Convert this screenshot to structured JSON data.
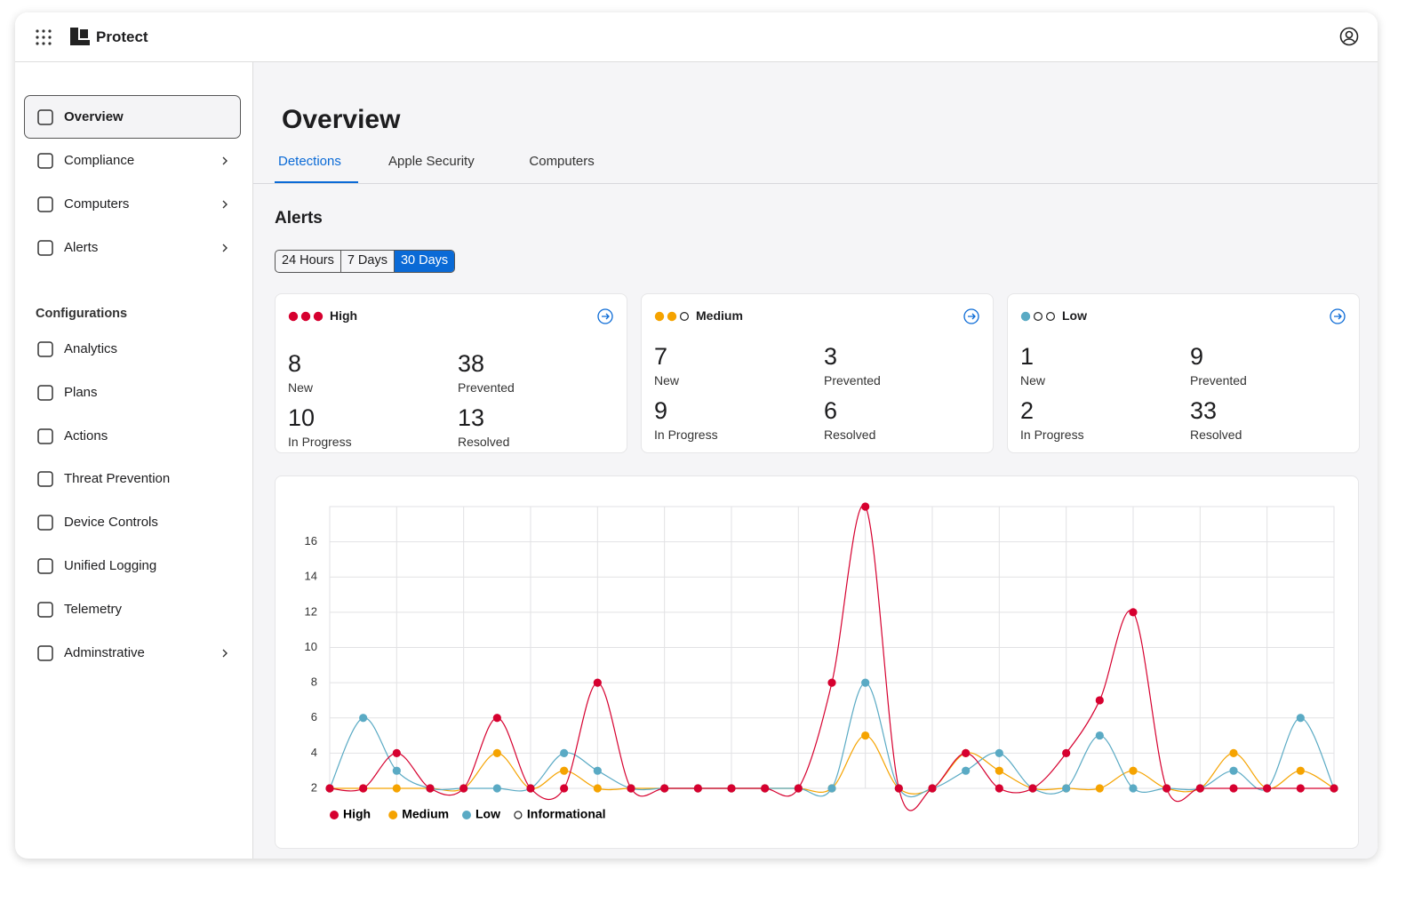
{
  "header": {
    "app": "Protect"
  },
  "sidebar": {
    "items": [
      {
        "label": "Overview",
        "active": true,
        "has_submenu": false
      },
      {
        "label": "Compliance",
        "has_submenu": true
      },
      {
        "label": "Computers",
        "has_submenu": true
      },
      {
        "label": "Alerts",
        "has_submenu": true
      }
    ],
    "section": "Configurations",
    "config_items": [
      {
        "label": "Analytics",
        "has_submenu": false
      },
      {
        "label": "Plans",
        "has_submenu": false
      },
      {
        "label": "Actions",
        "has_submenu": false
      },
      {
        "label": "Threat Prevention",
        "has_submenu": false
      },
      {
        "label": "Device Controls",
        "has_submenu": false
      },
      {
        "label": "Unified Logging",
        "has_submenu": false
      },
      {
        "label": "Telemetry",
        "has_submenu": false
      },
      {
        "label": "Adminstrative",
        "has_submenu": true
      }
    ]
  },
  "page": {
    "title": "Overview",
    "tabs": [
      "Detections",
      "Apple Security",
      "Computers"
    ],
    "active_tab": 0,
    "section": "Alerts",
    "ranges": [
      "24 Hours",
      "7 Days",
      "30 Days"
    ],
    "active_range": 2
  },
  "cards": [
    {
      "title": "High",
      "color": "#d6002f",
      "filled_dots": 3,
      "stats": [
        {
          "value": 8,
          "label": "New"
        },
        {
          "value": 38,
          "label": "Prevented"
        },
        {
          "value": 10,
          "label": "In Progress"
        },
        {
          "value": 13,
          "label": "Resolved"
        }
      ]
    },
    {
      "title": "Medium",
      "color": "#f5a300",
      "filled_dots": 2,
      "stats": [
        {
          "value": 7,
          "label": "New"
        },
        {
          "value": 3,
          "label": "Prevented"
        },
        {
          "value": 9,
          "label": "In Progress"
        },
        {
          "value": 6,
          "label": "Resolved"
        }
      ]
    },
    {
      "title": "Low",
      "color": "#5aaac4",
      "filled_dots": 1,
      "stats": [
        {
          "value": 1,
          "label": "New"
        },
        {
          "value": 9,
          "label": "Prevented"
        },
        {
          "value": 2,
          "label": "In Progress"
        },
        {
          "value": 33,
          "label": "Resolved"
        }
      ]
    }
  ],
  "chart_data": {
    "type": "line",
    "categories": [
      null,
      null,
      null,
      null,
      null,
      null,
      null,
      null,
      null,
      null,
      null,
      null,
      null,
      null,
      null,
      null,
      null,
      null,
      null,
      null,
      null,
      null,
      null,
      null,
      null,
      null,
      null,
      null,
      null,
      null,
      null
    ],
    "ylim": [
      2,
      18
    ],
    "yticks": [
      2,
      4,
      6,
      8,
      10,
      12,
      14,
      16
    ],
    "grid": true,
    "series": [
      {
        "name": "High",
        "color": "#d6002f",
        "values": [
          2,
          2,
          4,
          2,
          2,
          6,
          2,
          2,
          8,
          2,
          2,
          2,
          2,
          2,
          2,
          8,
          18,
          2,
          2,
          4,
          2,
          2,
          4,
          7,
          12,
          2,
          2,
          2,
          2,
          2,
          2
        ]
      },
      {
        "name": "Medium",
        "color": "#f5a300",
        "values": [
          2,
          2,
          2,
          2,
          2,
          4,
          2,
          3,
          2,
          2,
          2,
          2,
          2,
          2,
          2,
          2,
          5,
          2,
          2,
          4,
          3,
          2,
          2,
          2,
          3,
          2,
          2,
          4,
          2,
          3,
          2
        ]
      },
      {
        "name": "Low",
        "color": "#5aaac4",
        "values": [
          2,
          6,
          3,
          2,
          2,
          2,
          2,
          4,
          3,
          2,
          2,
          2,
          2,
          2,
          2,
          2,
          8,
          2,
          2,
          3,
          4,
          2,
          2,
          5,
          2,
          2,
          2,
          3,
          2,
          6,
          2
        ]
      },
      {
        "name": "Informational",
        "color": "#ffffff",
        "values": [
          2,
          2,
          2,
          2,
          2,
          2,
          2,
          2,
          2,
          2,
          2,
          2,
          2,
          2,
          2,
          2,
          2,
          2,
          2,
          2,
          2,
          2,
          2,
          2,
          2,
          2,
          2,
          2,
          2,
          2,
          2
        ]
      }
    ]
  }
}
